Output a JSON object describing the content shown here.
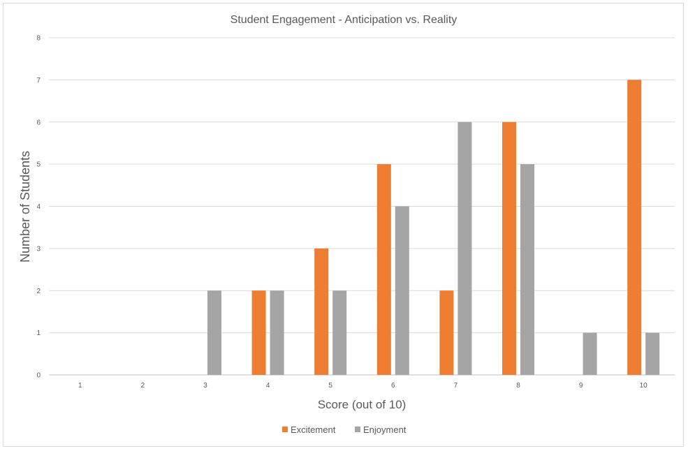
{
  "chart_data": {
    "type": "bar",
    "title": "Student Engagement - Anticipation vs. Reality",
    "xlabel": "Score (out of 10)",
    "ylabel": "Number of Students",
    "categories": [
      "1",
      "2",
      "3",
      "4",
      "5",
      "6",
      "7",
      "8",
      "9",
      "10"
    ],
    "series": [
      {
        "name": "Excitement",
        "color": "#ed7d31",
        "values": [
          0,
          0,
          0,
          2,
          3,
          5,
          2,
          6,
          0,
          7
        ]
      },
      {
        "name": "Enjoyment",
        "color": "#a5a5a5",
        "values": [
          0,
          0,
          2,
          2,
          2,
          4,
          6,
          5,
          1,
          1
        ]
      }
    ],
    "ylim": [
      0,
      8
    ],
    "yticks": [
      "0",
      "1",
      "2",
      "3",
      "4",
      "5",
      "6",
      "7",
      "8"
    ],
    "grid": true,
    "legend_position": "bottom"
  }
}
